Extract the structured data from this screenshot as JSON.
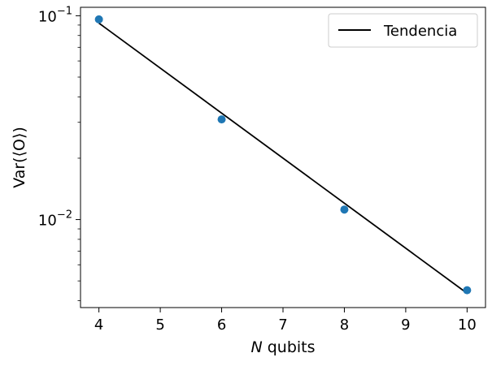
{
  "chart_data": {
    "type": "scatter",
    "title": "",
    "xlabel_var": "N",
    "xlabel_rest": " qubits",
    "ylabel": "Var(⟨O⟩)",
    "y_scale": "log",
    "xlim": [
      3.7,
      10.3
    ],
    "ylim": [
      0.0037,
      0.11
    ],
    "x_ticks": [
      4,
      5,
      6,
      7,
      8,
      9,
      10
    ],
    "y_major_ticks": [
      {
        "value": 0.1,
        "base": "10",
        "exp": "−1"
      },
      {
        "value": 0.01,
        "base": "10",
        "exp": "−2"
      }
    ],
    "y_minor_ticks": [
      0.004,
      0.005,
      0.006,
      0.007,
      0.008,
      0.009,
      0.02,
      0.03,
      0.04,
      0.05,
      0.06,
      0.07,
      0.08,
      0.09
    ],
    "grid": false,
    "series": [
      {
        "kind": "scatter",
        "color": "#1f77b4",
        "x": [
          4,
          6,
          8,
          10
        ],
        "y": [
          0.096,
          0.031,
          0.0112,
          0.0045
        ]
      },
      {
        "kind": "line",
        "name": "Tendencia",
        "color": "#000000",
        "x": [
          4,
          10
        ],
        "y": [
          0.092,
          0.00435
        ]
      }
    ],
    "legend": {
      "position": "upper-right",
      "entries": [
        "Tendencia"
      ]
    }
  }
}
